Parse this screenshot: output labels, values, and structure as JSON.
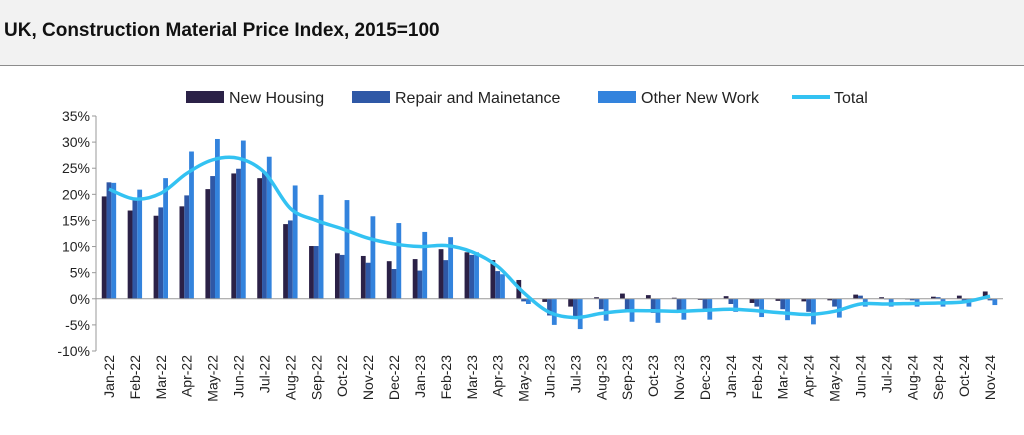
{
  "page": {
    "title": "UK, Construction Material Price Index, 2015=100"
  },
  "chart_data": {
    "type": "bar",
    "title": "UK, Construction Material Price Index, 2015=100",
    "xlabel": "",
    "ylabel": "",
    "ylim": [
      -10,
      35
    ],
    "yticks": [
      -10,
      -5,
      0,
      5,
      10,
      15,
      20,
      25,
      30,
      35
    ],
    "ytick_labels": [
      "-10%",
      "-5%",
      "0%",
      "5%",
      "10%",
      "15%",
      "20%",
      "25%",
      "30%",
      "35%"
    ],
    "legend_position": "top",
    "grid": false,
    "categories": [
      "Jan-22",
      "Feb-22",
      "Mar-22",
      "Apr-22",
      "May-22",
      "Jun-22",
      "Jul-22",
      "Aug-22",
      "Sep-22",
      "Oct-22",
      "Nov-22",
      "Dec-22",
      "Jan-23",
      "Feb-23",
      "Mar-23",
      "Apr-23",
      "May-23",
      "Jun-23",
      "Jul-23",
      "Aug-23",
      "Sep-23",
      "Oct-23",
      "Nov-23",
      "Dec-23",
      "Jan-24",
      "Feb-24",
      "Mar-24",
      "Apr-24",
      "May-24",
      "Jun-24",
      "Jul-24",
      "Aug-24",
      "Sep-24",
      "Oct-24",
      "Nov-24"
    ],
    "series": [
      {
        "name": "New Housing",
        "type": "bar",
        "color": "#2b2147",
        "values": [
          19.6,
          16.9,
          15.9,
          17.7,
          21.0,
          24.0,
          23.1,
          14.3,
          10.1,
          8.7,
          8.2,
          7.2,
          7.6,
          9.5,
          8.9,
          7.4,
          3.6,
          -0.6,
          -1.5,
          0.3,
          1.0,
          0.7,
          0.2,
          -0.2,
          0.5,
          -0.8,
          -0.4,
          -0.5,
          -0.3,
          0.8,
          0.3,
          0.0,
          0.4,
          0.6,
          1.4
        ]
      },
      {
        "name": "Repair and Mainetance",
        "type": "bar",
        "color": "#2f58a6",
        "values": [
          22.3,
          19.3,
          17.5,
          19.8,
          23.5,
          24.9,
          24.3,
          15.0,
          10.1,
          8.4,
          6.9,
          5.7,
          5.4,
          7.4,
          8.4,
          5.3,
          -0.5,
          -3.2,
          -3.3,
          -2.0,
          -2.5,
          -2.7,
          -2.5,
          -2.0,
          -1.0,
          -1.5,
          -2.0,
          -2.5,
          -1.5,
          0.6,
          0.0,
          -0.3,
          0.3,
          -0.4,
          -0.3
        ]
      },
      {
        "name": "Other New Work",
        "type": "bar",
        "color": "#3383dd",
        "values": [
          22.2,
          20.9,
          23.1,
          28.2,
          30.6,
          30.3,
          27.2,
          21.7,
          19.9,
          18.9,
          15.8,
          14.5,
          12.8,
          11.8,
          8.9,
          4.7,
          -1.0,
          -5.0,
          -5.8,
          -4.2,
          -4.4,
          -4.6,
          -4.0,
          -4.0,
          -2.5,
          -3.5,
          -4.1,
          -4.9,
          -3.6,
          -1.5,
          -1.5,
          -1.5,
          -1.5,
          -1.5,
          -1.2
        ]
      },
      {
        "name": "Total",
        "type": "line",
        "color": "#33c2f2",
        "values": [
          21.0,
          19.1,
          20.2,
          24.0,
          26.6,
          26.9,
          24.2,
          17.3,
          15.0,
          13.4,
          11.6,
          10.5,
          10.0,
          10.2,
          9.0,
          6.2,
          1.2,
          -2.6,
          -3.6,
          -2.8,
          -2.3,
          -2.3,
          -2.4,
          -2.2,
          -2.0,
          -2.3,
          -2.7,
          -3.0,
          -2.4,
          -1.0,
          -1.0,
          -0.9,
          -0.8,
          -0.6,
          0.5
        ]
      }
    ]
  }
}
